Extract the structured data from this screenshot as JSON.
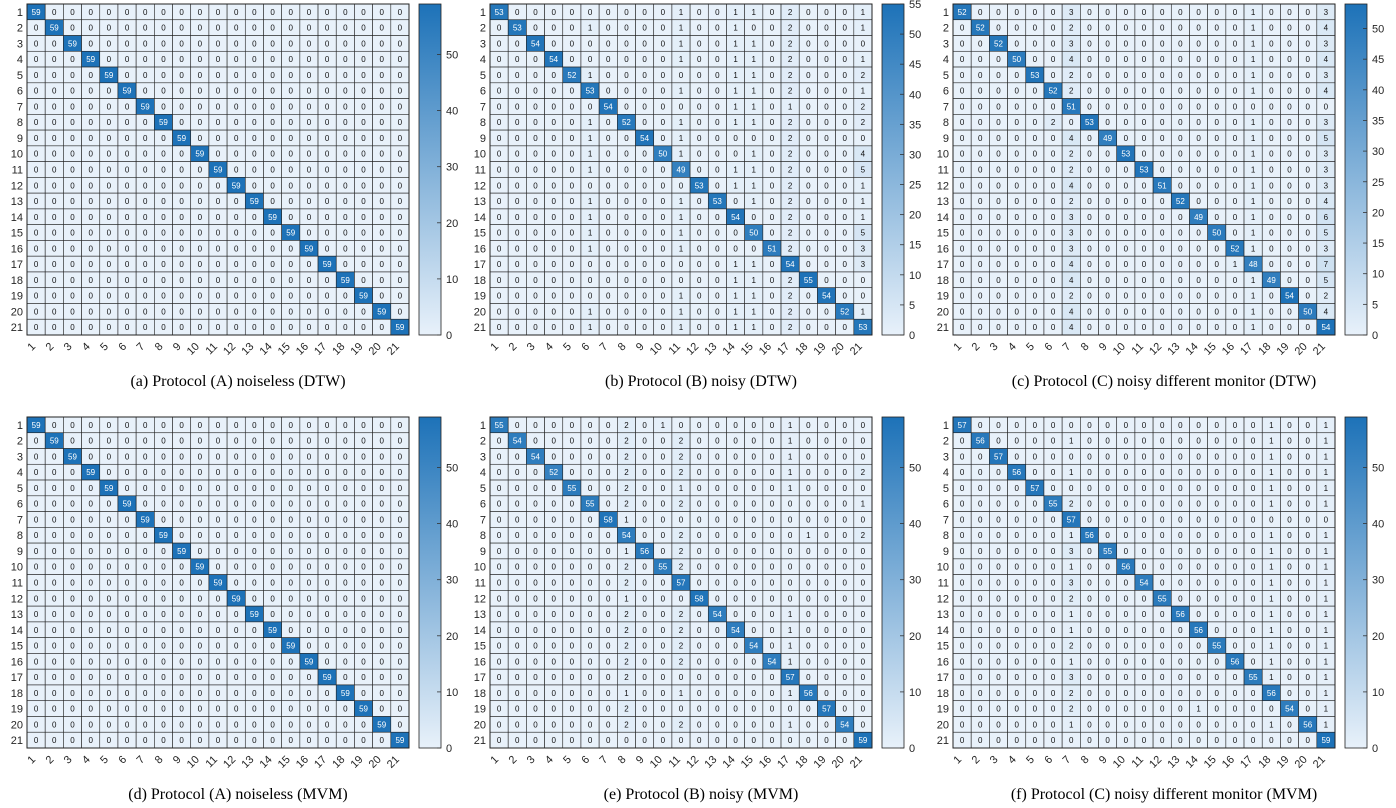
{
  "colormap": {
    "low": "#e8f1fa",
    "high": "#1d72b8",
    "grid": "#222222"
  },
  "chart_data": [
    {
      "type": "heatmap",
      "title": "",
      "caption": "(a) Protocol (A) noiseless (DTW)",
      "labels": [
        "1",
        "2",
        "3",
        "4",
        "5",
        "6",
        "7",
        "8",
        "9",
        "10",
        "11",
        "12",
        "13",
        "14",
        "15",
        "16",
        "17",
        "18",
        "19",
        "20",
        "21"
      ],
      "diag": [
        59,
        59,
        59,
        59,
        59,
        59,
        59,
        59,
        59,
        59,
        59,
        59,
        59,
        59,
        59,
        59,
        59,
        59,
        59,
        59,
        59
      ],
      "offdiag": {},
      "clim": [
        0,
        59
      ],
      "colorbar_ticks": [
        0,
        10,
        20,
        30,
        40,
        50
      ]
    },
    {
      "type": "heatmap",
      "title": "",
      "caption": "(b) Protocol (B) noisy (DTW)",
      "labels": [
        "1",
        "2",
        "3",
        "4",
        "5",
        "6",
        "7",
        "8",
        "9",
        "10",
        "11",
        "12",
        "13",
        "14",
        "15",
        "16",
        "17",
        "18",
        "19",
        "20",
        "21"
      ],
      "diag": [
        53,
        53,
        54,
        54,
        52,
        53,
        54,
        52,
        54,
        50,
        49,
        53,
        53,
        54,
        50,
        51,
        54,
        55,
        54,
        52,
        53
      ],
      "offdiag": {
        "1": {
          "11": 1,
          "14": 1,
          "15": 1,
          "17": 2,
          "21": 1
        },
        "2": {
          "6": 1,
          "11": 1,
          "14": 1,
          "17": 2,
          "21": 1
        },
        "3": {
          "11": 1,
          "14": 1,
          "15": 1,
          "17": 2
        },
        "4": {
          "11": 1,
          "14": 1,
          "15": 1,
          "17": 2,
          "21": 1
        },
        "5": {
          "6": 1,
          "14": 1,
          "15": 1,
          "17": 2,
          "21": 2
        },
        "6": {
          "11": 1,
          "14": 1,
          "15": 1,
          "17": 2,
          "21": 1
        },
        "7": {
          "14": 1,
          "15": 1,
          "17": 1,
          "21": 2
        },
        "8": {
          "6": 1,
          "11": 1,
          "14": 1,
          "15": 1,
          "17": 2,
          "21": 2
        },
        "9": {
          "6": 1,
          "11": 1,
          "17": 2
        },
        "10": {
          "6": 1,
          "11": 1,
          "15": 1,
          "17": 2,
          "21": 4
        },
        "11": {
          "6": 1,
          "14": 1,
          "15": 1,
          "17": 2,
          "21": 5
        },
        "12": {
          "14": 1,
          "15": 1,
          "17": 2,
          "21": 1
        },
        "13": {
          "6": 1,
          "11": 1,
          "15": 1,
          "17": 2,
          "21": 1
        },
        "14": {
          "6": 1,
          "11": 1,
          "17": 2,
          "21": 1
        },
        "15": {
          "6": 1,
          "11": 1,
          "17": 2,
          "21": 5
        },
        "16": {
          "6": 1,
          "11": 1,
          "17": 2,
          "21": 3
        },
        "17": {
          "14": 1,
          "15": 1,
          "21": 3
        },
        "18": {
          "14": 1,
          "15": 1,
          "17": 2
        },
        "19": {
          "11": 1,
          "14": 1,
          "15": 1,
          "17": 2
        },
        "20": {
          "6": 1,
          "11": 1,
          "14": 1,
          "15": 1,
          "17": 2,
          "21": 1
        },
        "21": {
          "6": 1,
          "11": 1,
          "14": 1,
          "15": 1,
          "17": 2
        }
      },
      "clim": [
        0,
        55
      ],
      "colorbar_ticks": [
        0,
        5,
        10,
        15,
        20,
        25,
        30,
        35,
        40,
        45,
        50,
        55
      ]
    },
    {
      "type": "heatmap",
      "title": "",
      "caption": "(c) Protocol (C) noisy different monitor (DTW)",
      "labels": [
        "1",
        "2",
        "3",
        "4",
        "5",
        "6",
        "7",
        "8",
        "9",
        "10",
        "11",
        "12",
        "13",
        "14",
        "15",
        "16",
        "17",
        "18",
        "19",
        "20",
        "21"
      ],
      "diag": [
        52,
        52,
        52,
        50,
        53,
        52,
        51,
        53,
        49,
        53,
        53,
        51,
        52,
        49,
        50,
        52,
        48,
        49,
        54,
        50,
        54
      ],
      "offdiag": {
        "1": {
          "7": 3,
          "17": 1,
          "21": 3
        },
        "2": {
          "7": 2,
          "17": 1,
          "21": 4
        },
        "3": {
          "7": 3,
          "17": 1,
          "21": 3
        },
        "4": {
          "7": 4,
          "17": 1,
          "21": 4
        },
        "5": {
          "7": 2,
          "17": 1,
          "21": 3
        },
        "6": {
          "7": 2,
          "17": 1,
          "21": 4
        },
        "8": {
          "6": 2,
          "17": 1,
          "21": 3
        },
        "9": {
          "7": 4,
          "17": 1,
          "21": 5
        },
        "10": {
          "7": 2,
          "17": 1,
          "21": 3
        },
        "11": {
          "7": 2,
          "17": 1,
          "21": 3
        },
        "12": {
          "7": 4,
          "17": 1,
          "21": 3
        },
        "13": {
          "7": 2,
          "17": 1,
          "21": 4
        },
        "14": {
          "7": 3,
          "17": 1,
          "21": 6
        },
        "15": {
          "7": 3,
          "17": 1,
          "21": 5
        },
        "16": {
          "7": 3,
          "17": 1,
          "21": 3
        },
        "17": {
          "7": 4,
          "16": 1,
          "21": 7
        },
        "18": {
          "7": 4,
          "17": 1,
          "21": 5
        },
        "19": {
          "7": 2,
          "17": 1,
          "21": 2
        },
        "20": {
          "7": 4,
          "17": 1,
          "21": 4
        },
        "21": {
          "7": 4,
          "17": 1
        }
      },
      "clim": [
        0,
        54
      ],
      "colorbar_ticks": [
        0,
        5,
        10,
        15,
        20,
        25,
        30,
        35,
        40,
        45,
        50
      ]
    },
    {
      "type": "heatmap",
      "title": "",
      "caption": "(d) Protocol (A) noiseless (MVM)",
      "labels": [
        "1",
        "2",
        "3",
        "4",
        "5",
        "6",
        "7",
        "8",
        "9",
        "10",
        "11",
        "12",
        "13",
        "14",
        "15",
        "16",
        "17",
        "18",
        "19",
        "20",
        "21"
      ],
      "diag": [
        59,
        59,
        59,
        59,
        59,
        59,
        59,
        59,
        59,
        59,
        59,
        59,
        59,
        59,
        59,
        59,
        59,
        59,
        59,
        59,
        59
      ],
      "offdiag": {},
      "clim": [
        0,
        59
      ],
      "colorbar_ticks": [
        0,
        10,
        20,
        30,
        40,
        50
      ]
    },
    {
      "type": "heatmap",
      "title": "",
      "caption": "(e) Protocol (B) noisy (MVM)",
      "labels": [
        "1",
        "2",
        "3",
        "4",
        "5",
        "6",
        "7",
        "8",
        "9",
        "10",
        "11",
        "12",
        "13",
        "14",
        "15",
        "16",
        "17",
        "18",
        "19",
        "20",
        "21"
      ],
      "diag": [
        55,
        54,
        54,
        52,
        55,
        55,
        58,
        54,
        56,
        55,
        57,
        58,
        54,
        54,
        54,
        54,
        57,
        56,
        57,
        54,
        59
      ],
      "offdiag": {
        "1": {
          "8": 2,
          "10": 1,
          "17": 1
        },
        "2": {
          "8": 2,
          "11": 2,
          "17": 1
        },
        "3": {
          "8": 2,
          "11": 2,
          "17": 1
        },
        "4": {
          "8": 2,
          "11": 2,
          "17": 1,
          "21": 2
        },
        "5": {
          "8": 2,
          "11": 1,
          "17": 1
        },
        "6": {
          "8": 2,
          "11": 2,
          "21": 1
        },
        "7": {
          "8": 1
        },
        "8": {
          "11": 2,
          "18": 1,
          "21": 2
        },
        "9": {
          "8": 1,
          "11": 2
        },
        "10": {
          "8": 2,
          "11": 2
        },
        "11": {
          "8": 2
        },
        "12": {
          "8": 1
        },
        "13": {
          "8": 2,
          "11": 2,
          "17": 1
        },
        "14": {
          "8": 2,
          "11": 2,
          "17": 1
        },
        "15": {
          "8": 2,
          "11": 2,
          "17": 1
        },
        "16": {
          "8": 2,
          "11": 2,
          "17": 1
        },
        "17": {
          "8": 2
        },
        "18": {
          "8": 1,
          "11": 1,
          "17": 1
        },
        "19": {
          "8": 2
        },
        "20": {
          "8": 2,
          "11": 2,
          "17": 1
        },
        "21": {}
      },
      "clim": [
        0,
        59
      ],
      "colorbar_ticks": [
        0,
        10,
        20,
        30,
        40,
        50
      ]
    },
    {
      "type": "heatmap",
      "title": "",
      "caption": "(f) Protocol (C) noisy different monitor (MVM)",
      "labels": [
        "1",
        "2",
        "3",
        "4",
        "5",
        "6",
        "7",
        "8",
        "9",
        "10",
        "11",
        "12",
        "13",
        "14",
        "15",
        "16",
        "17",
        "18",
        "19",
        "20",
        "21"
      ],
      "diag": [
        57,
        56,
        57,
        56,
        57,
        55,
        57,
        56,
        55,
        56,
        54,
        55,
        56,
        56,
        55,
        56,
        55,
        56,
        54,
        56,
        59
      ],
      "offdiag": {
        "1": {
          "18": 1,
          "21": 1
        },
        "2": {
          "7": 1,
          "18": 1,
          "21": 1
        },
        "3": {
          "18": 1,
          "21": 1
        },
        "4": {
          "7": 1,
          "18": 1,
          "21": 1
        },
        "5": {
          "18": 1,
          "21": 1
        },
        "6": {
          "7": 2,
          "18": 1,
          "21": 1
        },
        "8": {
          "7": 1,
          "18": 1,
          "21": 1
        },
        "9": {
          "7": 3,
          "18": 1,
          "21": 1
        },
        "10": {
          "7": 1,
          "18": 1,
          "21": 1
        },
        "11": {
          "7": 3,
          "18": 1,
          "21": 1
        },
        "12": {
          "7": 2,
          "18": 1,
          "21": 1
        },
        "13": {
          "7": 1,
          "18": 1,
          "21": 1
        },
        "14": {
          "7": 1,
          "18": 1,
          "21": 1
        },
        "15": {
          "7": 2,
          "18": 1,
          "21": 1
        },
        "16": {
          "7": 1,
          "18": 1,
          "21": 1
        },
        "17": {
          "7": 3,
          "18": 1,
          "21": 1
        },
        "18": {
          "7": 2,
          "21": 1
        },
        "19": {
          "7": 2,
          "14": 1,
          "21": 1
        },
        "20": {
          "7": 1,
          "18": 1,
          "21": 1
        },
        "21": {}
      },
      "clim": [
        0,
        59
      ],
      "colorbar_ticks": [
        0,
        10,
        20,
        30,
        40,
        50
      ]
    }
  ]
}
